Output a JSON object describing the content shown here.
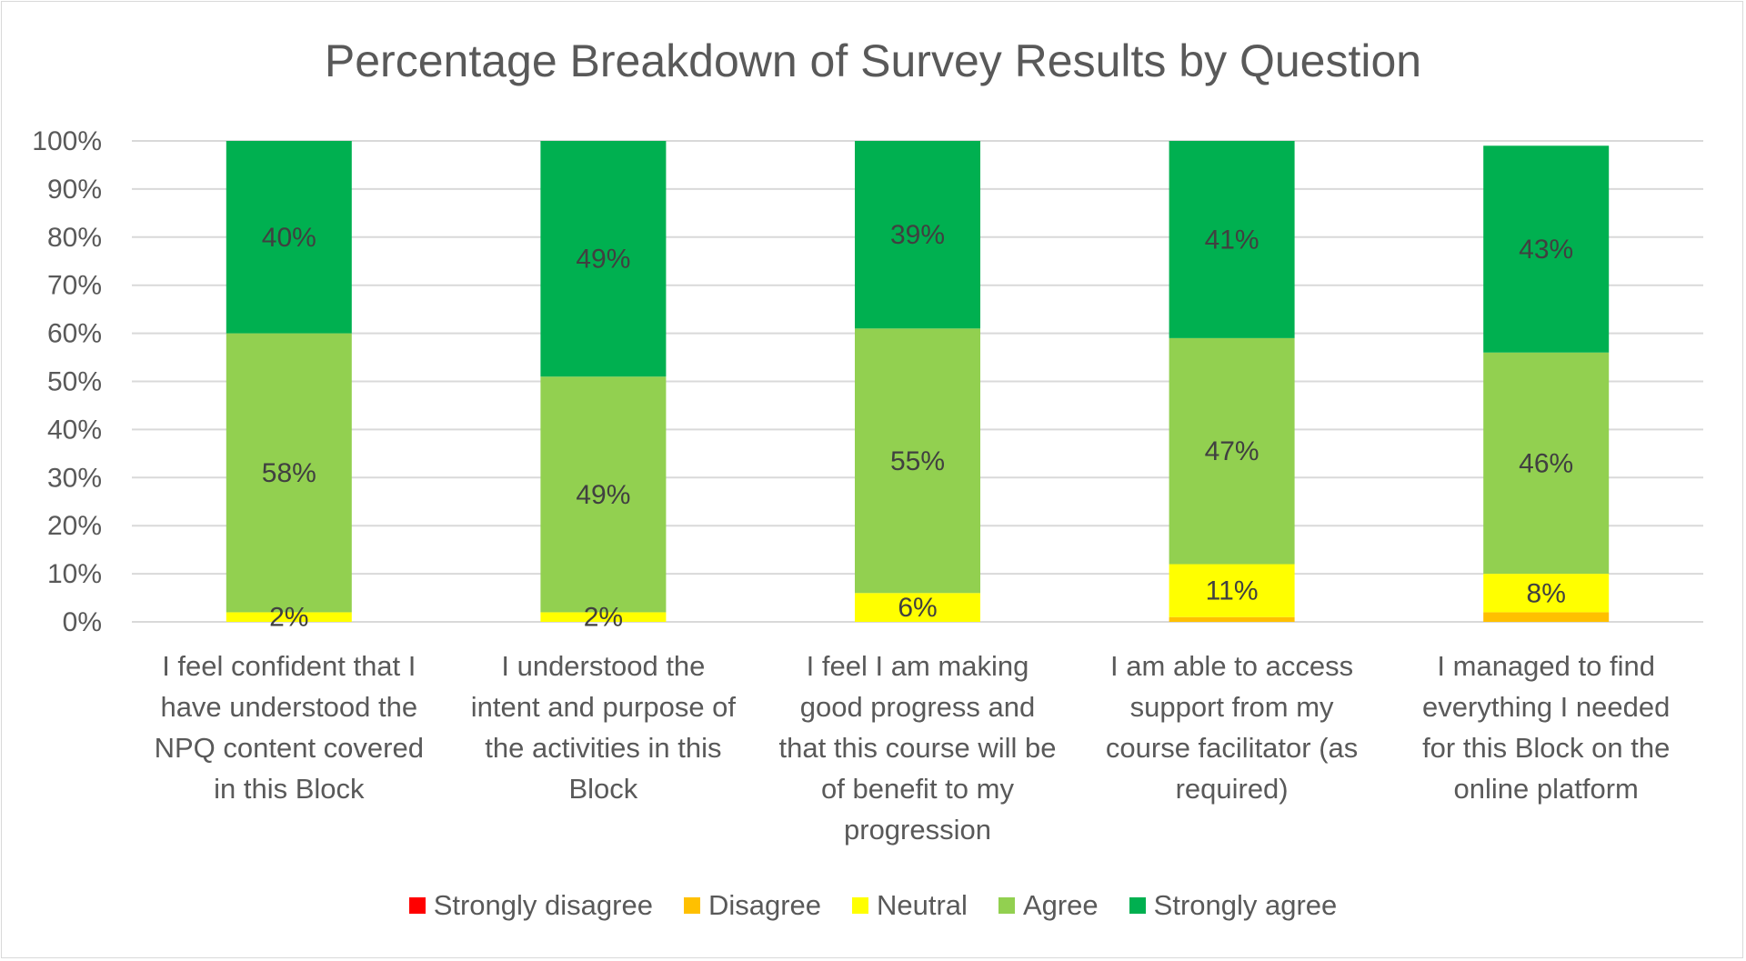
{
  "chart_data": {
    "type": "bar",
    "stacked": true,
    "percent_stacked": true,
    "title": "Percentage Breakdown of Survey Results by Question",
    "categories": [
      "I feel confident that I have understood the NPQ content covered in this Block",
      "I understood the intent and purpose of the activities in this Block",
      "I feel I am making good progress and that this course will be of benefit to my progression",
      "I am able to access support from my course facilitator (as required)",
      "I managed to find everything I needed for this Block on the online platform"
    ],
    "category_lines": [
      [
        "I feel confident that I",
        "have understood the",
        "NPQ content covered",
        "in this Block"
      ],
      [
        "I understood the",
        "intent and purpose of",
        "the activities in this",
        "Block"
      ],
      [
        "I feel I am making",
        "good progress and",
        "that this course will be",
        "of benefit to my",
        "progression"
      ],
      [
        "I am able to access",
        "support from my",
        "course facilitator (as",
        "required)"
      ],
      [
        "I managed to find",
        "everything I needed",
        "for this Block on the",
        "online platform"
      ]
    ],
    "series": [
      {
        "name": "Strongly disagree",
        "color": "#ff0000",
        "values": [
          0,
          0,
          0,
          0,
          0
        ]
      },
      {
        "name": "Disagree",
        "color": "#ffc000",
        "values": [
          0,
          0,
          0,
          1,
          2
        ]
      },
      {
        "name": "Neutral",
        "color": "#ffff00",
        "values": [
          2,
          2,
          6,
          11,
          8
        ]
      },
      {
        "name": "Agree",
        "color": "#92d050",
        "values": [
          58,
          49,
          55,
          47,
          46
        ]
      },
      {
        "name": "Strongly agree",
        "color": "#00b050",
        "values": [
          40,
          49,
          39,
          41,
          43
        ]
      }
    ],
    "labeled_series": [
      "Neutral",
      "Agree",
      "Strongly agree"
    ],
    "y_ticks": [
      "0%",
      "10%",
      "20%",
      "30%",
      "40%",
      "50%",
      "60%",
      "70%",
      "80%",
      "90%",
      "100%"
    ],
    "ylim": [
      0,
      100
    ],
    "grid": true,
    "legend_position": "bottom"
  }
}
